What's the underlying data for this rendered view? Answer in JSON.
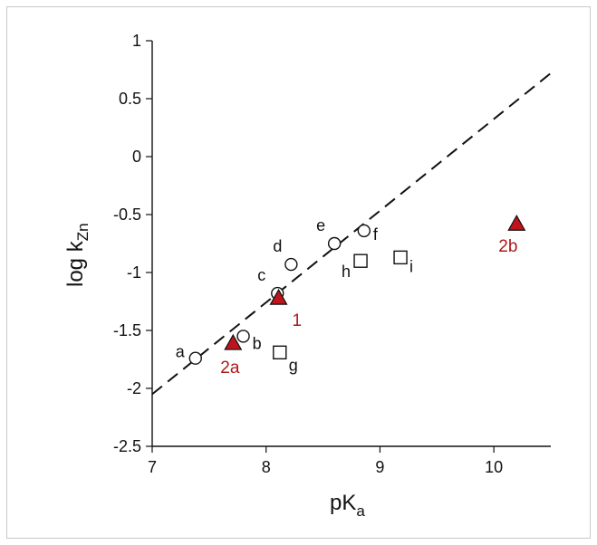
{
  "chart_data": {
    "type": "scatter",
    "xlabel": {
      "main": "pK",
      "sub": "a"
    },
    "ylabel": {
      "main": "log k",
      "sub": "Zn"
    },
    "xlim": [
      7,
      10.5
    ],
    "ylim": [
      -2.5,
      1
    ],
    "x_ticks": [
      "7",
      "8",
      "9",
      "10"
    ],
    "x_tick_values": [
      7,
      8,
      9,
      10
    ],
    "y_ticks": [
      "1",
      "0.5",
      "0",
      "-0.5",
      "-1",
      "-1.5",
      "-2",
      "-2.5"
    ],
    "y_tick_values": [
      1,
      0.5,
      0,
      -0.5,
      -1,
      -1.5,
      -2,
      -2.5
    ],
    "grid": false,
    "fit_line": {
      "style": "dashed",
      "x": [
        7,
        10.5
      ],
      "y": [
        -2.05,
        0.72
      ]
    },
    "colors": {
      "triangle_fill": "#c0141c",
      "red_label": "#b01818",
      "ink": "#111111"
    },
    "series": [
      {
        "marker": "circle",
        "points": [
          {
            "label": "a",
            "x": 7.38,
            "y": -1.74
          },
          {
            "label": "b",
            "x": 7.8,
            "y": -1.55
          },
          {
            "label": "c",
            "x": 8.1,
            "y": -1.18
          },
          {
            "label": "d",
            "x": 8.22,
            "y": -0.93
          },
          {
            "label": "e",
            "x": 8.6,
            "y": -0.75
          },
          {
            "label": "f",
            "x": 8.86,
            "y": -0.64
          }
        ]
      },
      {
        "marker": "square",
        "points": [
          {
            "label": "g",
            "x": 8.12,
            "y": -1.69
          },
          {
            "label": "h",
            "x": 8.83,
            "y": -0.9
          },
          {
            "label": "i",
            "x": 9.18,
            "y": -0.87
          }
        ]
      },
      {
        "marker": "triangle",
        "points": [
          {
            "label": "2a",
            "x": 7.71,
            "y": -1.61
          },
          {
            "label": "1",
            "x": 8.11,
            "y": -1.22
          },
          {
            "label": "2b",
            "x": 10.2,
            "y": -0.58
          }
        ]
      }
    ]
  }
}
